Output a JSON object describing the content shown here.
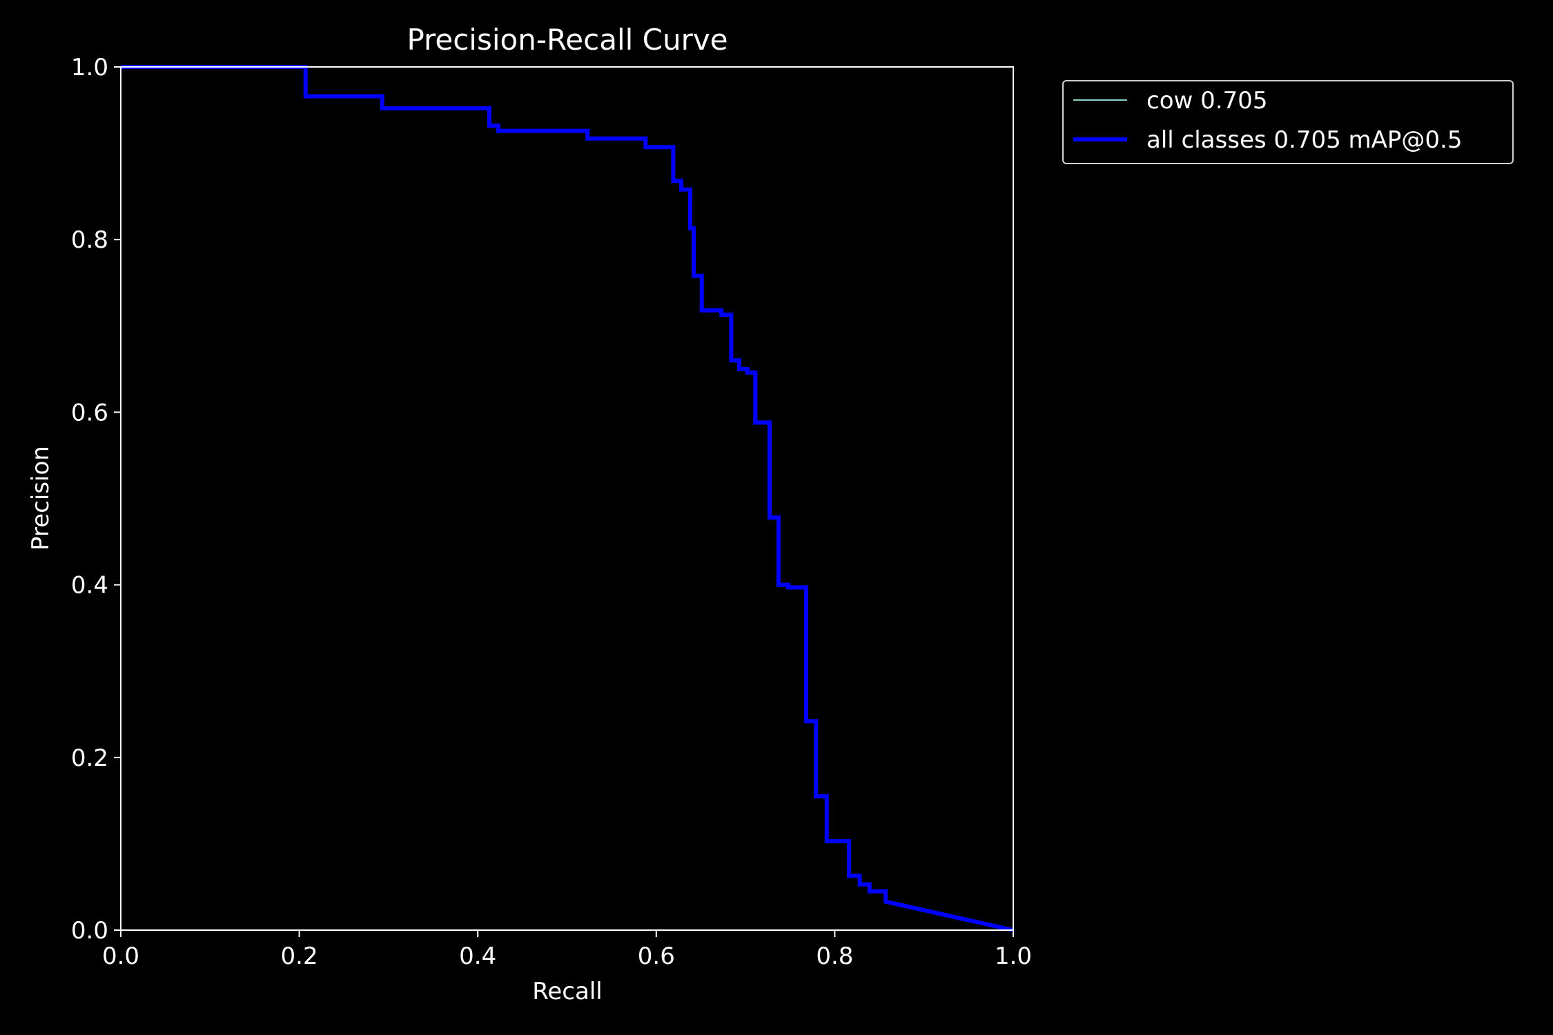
{
  "chart_data": {
    "type": "line",
    "title": "Precision-Recall Curve",
    "xlabel": "Recall",
    "ylabel": "Precision",
    "xlim": [
      0.0,
      1.0
    ],
    "ylim": [
      0.0,
      1.0
    ],
    "xticks": [
      "0.0",
      "0.2",
      "0.4",
      "0.6",
      "0.8",
      "1.0"
    ],
    "yticks": [
      "0.0",
      "0.2",
      "0.4",
      "0.6",
      "0.8",
      "1.0"
    ],
    "legend_position": "outside-top-right",
    "background_color": "#000000",
    "foreground_color": "#ffffff",
    "series": [
      {
        "name": "cow 0.705",
        "color": "#8dd3c7",
        "x": [
          0.0,
          0.207,
          0.207,
          0.293,
          0.293,
          0.413,
          0.413,
          0.423,
          0.423,
          0.523,
          0.523,
          0.588,
          0.588,
          0.619,
          0.619,
          0.628,
          0.628,
          0.638,
          0.638,
          0.642,
          0.642,
          0.651,
          0.651,
          0.673,
          0.673,
          0.684,
          0.684,
          0.693,
          0.693,
          0.702,
          0.702,
          0.711,
          0.711,
          0.727,
          0.727,
          0.737,
          0.737,
          0.748,
          0.748,
          0.768,
          0.768,
          0.779,
          0.779,
          0.791,
          0.791,
          0.816,
          0.816,
          0.828,
          0.828,
          0.839,
          0.839,
          0.857,
          0.857,
          1.0
        ],
        "y": [
          1.0,
          1.0,
          0.966,
          0.966,
          0.952,
          0.952,
          0.932,
          0.932,
          0.926,
          0.926,
          0.917,
          0.917,
          0.907,
          0.907,
          0.868,
          0.868,
          0.858,
          0.858,
          0.813,
          0.813,
          0.758,
          0.758,
          0.718,
          0.718,
          0.713,
          0.713,
          0.66,
          0.66,
          0.65,
          0.65,
          0.646,
          0.646,
          0.588,
          0.588,
          0.478,
          0.478,
          0.4,
          0.4,
          0.397,
          0.397,
          0.242,
          0.242,
          0.155,
          0.155,
          0.103,
          0.103,
          0.063,
          0.063,
          0.053,
          0.053,
          0.045,
          0.045,
          0.033,
          0.0
        ],
        "width": 2
      },
      {
        "name": "all classes 0.705 mAP@0.5",
        "color": "#0000ff",
        "x": [
          0.0,
          0.207,
          0.207,
          0.293,
          0.293,
          0.413,
          0.413,
          0.423,
          0.423,
          0.523,
          0.523,
          0.588,
          0.588,
          0.619,
          0.619,
          0.628,
          0.628,
          0.638,
          0.638,
          0.642,
          0.642,
          0.651,
          0.651,
          0.673,
          0.673,
          0.684,
          0.684,
          0.693,
          0.693,
          0.702,
          0.702,
          0.711,
          0.711,
          0.727,
          0.727,
          0.737,
          0.737,
          0.748,
          0.748,
          0.768,
          0.768,
          0.779,
          0.779,
          0.791,
          0.791,
          0.816,
          0.816,
          0.828,
          0.828,
          0.839,
          0.839,
          0.857,
          0.857,
          1.0
        ],
        "y": [
          1.0,
          1.0,
          0.966,
          0.966,
          0.952,
          0.952,
          0.932,
          0.932,
          0.926,
          0.926,
          0.917,
          0.917,
          0.907,
          0.907,
          0.868,
          0.868,
          0.858,
          0.858,
          0.813,
          0.813,
          0.758,
          0.758,
          0.718,
          0.718,
          0.713,
          0.713,
          0.66,
          0.66,
          0.65,
          0.65,
          0.646,
          0.646,
          0.588,
          0.588,
          0.478,
          0.478,
          0.4,
          0.4,
          0.397,
          0.397,
          0.242,
          0.242,
          0.155,
          0.155,
          0.103,
          0.103,
          0.063,
          0.063,
          0.053,
          0.053,
          0.045,
          0.045,
          0.033,
          0.0
        ],
        "width": 6
      }
    ]
  }
}
